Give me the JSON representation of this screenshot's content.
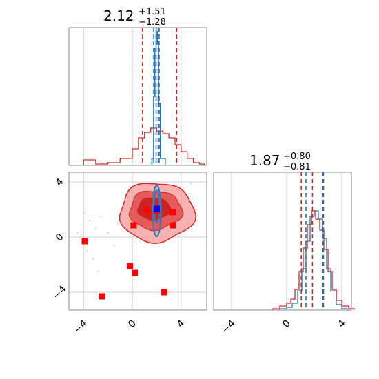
{
  "chart_data": {
    "type": "scatter",
    "kind": "corner-plot",
    "colors": {
      "red": "#d62728",
      "blue": "#1f77b4",
      "marker_red": "#ff0000",
      "marker_blue": "#0000ff",
      "grid": "#cccccc"
    },
    "titles": [
      {
        "value": "2.12",
        "upper": "+1.51",
        "lower": "−1.28"
      },
      {
        "value": "1.87",
        "upper": "+0.80",
        "lower": "−0.81"
      }
    ],
    "axes": {
      "param1_range": [
        -5.2,
        6.1
      ],
      "param2_range": [
        -5.3,
        4.7
      ],
      "ticks": [
        -4,
        0,
        4
      ],
      "tick_labels": [
        "−4",
        "0",
        "4"
      ],
      "grid": true
    },
    "hist1": {
      "red_quantiles": [
        0.84,
        2.12,
        3.63
      ],
      "blue_quantiles": [
        1.75,
        1.95,
        2.2
      ],
      "red_hist": [
        [
          -4.0,
          0.04
        ],
        [
          -3.0,
          0.01
        ],
        [
          -2.0,
          0.02
        ],
        [
          -1.0,
          0.05
        ],
        [
          0.0,
          0.12
        ],
        [
          0.5,
          0.2
        ],
        [
          1.0,
          0.24
        ],
        [
          1.5,
          0.27
        ],
        [
          2.0,
          0.25
        ],
        [
          2.5,
          0.23
        ],
        [
          3.0,
          0.2
        ],
        [
          3.5,
          0.15
        ],
        [
          4.0,
          0.1
        ],
        [
          4.5,
          0.05
        ],
        [
          5.0,
          0.02
        ],
        [
          5.5,
          0.01
        ]
      ],
      "blue_peak": [
        [
          1.6,
          0.05
        ],
        [
          1.75,
          0.5
        ],
        [
          1.85,
          0.85
        ],
        [
          1.95,
          0.97
        ],
        [
          2.05,
          0.88
        ],
        [
          2.15,
          0.45
        ],
        [
          2.3,
          0.05
        ]
      ]
    },
    "hist2": {
      "red_quantiles": [
        1.06,
        1.87,
        2.67
      ],
      "blue_quantiles": [
        1.4,
        2.62
      ],
      "red_hist": [
        [
          -1.0,
          0.01
        ],
        [
          -0.5,
          0.03
        ],
        [
          0.0,
          0.05
        ],
        [
          0.3,
          0.08
        ],
        [
          0.6,
          0.15
        ],
        [
          0.9,
          0.28
        ],
        [
          1.2,
          0.45
        ],
        [
          1.5,
          0.62
        ],
        [
          1.8,
          0.72
        ],
        [
          2.1,
          0.66
        ],
        [
          2.4,
          0.58
        ],
        [
          2.7,
          0.44
        ],
        [
          3.0,
          0.28
        ],
        [
          3.3,
          0.15
        ],
        [
          3.6,
          0.07
        ],
        [
          4.0,
          0.03
        ],
        [
          4.5,
          0.01
        ]
      ],
      "blue_hist": [
        [
          -0.5,
          0.01
        ],
        [
          0.0,
          0.02
        ],
        [
          0.4,
          0.05
        ],
        [
          0.8,
          0.14
        ],
        [
          1.1,
          0.3
        ],
        [
          1.4,
          0.5
        ],
        [
          1.7,
          0.68
        ],
        [
          2.0,
          0.72
        ],
        [
          2.3,
          0.66
        ],
        [
          2.6,
          0.52
        ],
        [
          2.9,
          0.3
        ],
        [
          3.2,
          0.14
        ],
        [
          3.6,
          0.04
        ],
        [
          4.0,
          0.01
        ]
      ]
    },
    "points_2d": {
      "red_markers": [
        [
          -3.9,
          -0.3
        ],
        [
          -2.5,
          -4.3
        ],
        [
          -0.2,
          -2.1
        ],
        [
          0.2,
          -2.6
        ],
        [
          0.1,
          0.85
        ],
        [
          1.2,
          1.95
        ],
        [
          2.0,
          1.9
        ],
        [
          3.3,
          1.8
        ],
        [
          3.3,
          0.85
        ],
        [
          2.6,
          -4.0
        ]
      ],
      "blue_markers": [
        [
          2.0,
          2.05
        ]
      ],
      "red_contour_center": [
        2.0,
        1.8
      ],
      "blue_contour_center": [
        2.0,
        1.9
      ]
    }
  }
}
